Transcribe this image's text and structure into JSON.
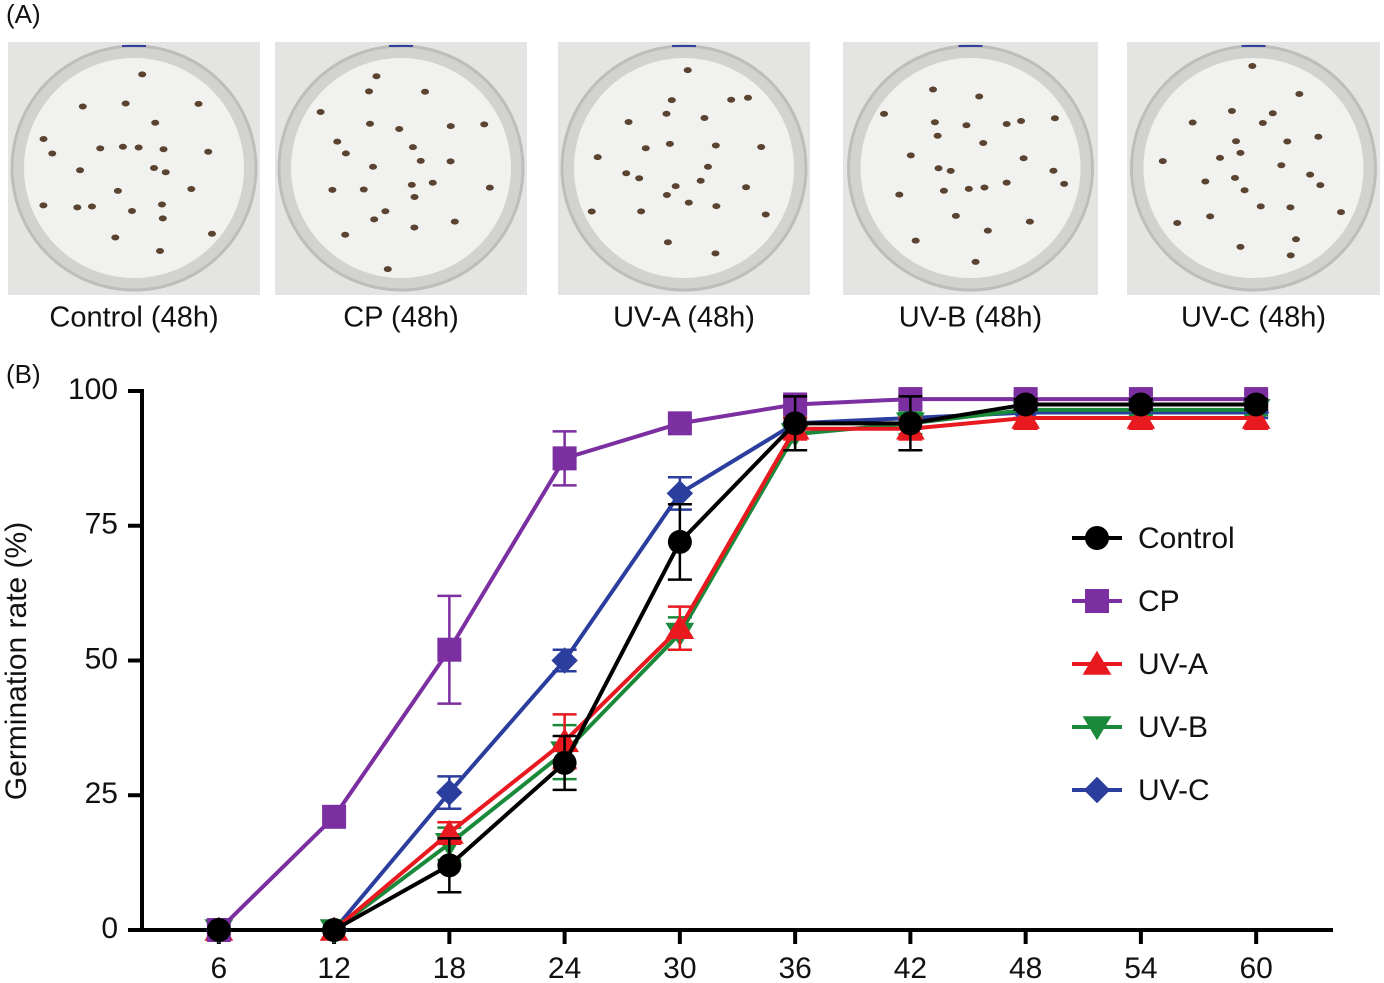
{
  "panel_a": {
    "label": "(A)",
    "captions": [
      "Control (48h)",
      "CP (48h)",
      "UV-A (48h)",
      "UV-B (48h)",
      "UV-C (48h)"
    ]
  },
  "panel_b": {
    "label": "(B)"
  },
  "chart_data": {
    "type": "line",
    "y_label": "Germination rate (%)",
    "x": [
      6,
      12,
      18,
      24,
      30,
      36,
      42,
      48,
      54,
      60
    ],
    "xlim": [
      2,
      64
    ],
    "xticks": [
      6,
      12,
      18,
      24,
      30,
      36,
      42,
      48,
      54,
      60
    ],
    "ylim": [
      0,
      100
    ],
    "yticks": [
      0,
      25,
      50,
      75,
      100
    ],
    "legend": "right",
    "series": [
      {
        "name": "Control",
        "color": "#000000",
        "marker": "circle",
        "values": [
          0,
          0,
          12,
          31,
          72,
          94,
          94,
          97.5,
          97.5,
          97.5
        ],
        "errors": [
          0,
          0,
          5,
          5,
          7,
          5,
          5,
          1,
          1,
          1
        ]
      },
      {
        "name": "CP",
        "color": "#7b2fa0",
        "marker": "square",
        "values": [
          0,
          21,
          52,
          87.5,
          94,
          97.5,
          98.5,
          98.5,
          98.5,
          98.5
        ],
        "errors": [
          0,
          0,
          10,
          5,
          1,
          1,
          1,
          1,
          1,
          1
        ]
      },
      {
        "name": "UV-A",
        "color": "#e8191f",
        "marker": "triangle-up",
        "values": [
          0,
          0,
          18,
          35,
          56,
          93,
          93,
          95,
          95,
          95
        ],
        "errors": [
          0,
          0,
          2,
          5,
          4,
          2,
          2,
          2,
          2,
          2
        ]
      },
      {
        "name": "UV-B",
        "color": "#1a8a3a",
        "marker": "triangle-down",
        "values": [
          0,
          0,
          16,
          33,
          55,
          92,
          94,
          96.5,
          96.5,
          96.5
        ],
        "errors": [
          0,
          0,
          3,
          5,
          3,
          3,
          2,
          3,
          1,
          1
        ]
      },
      {
        "name": "UV-C",
        "color": "#2b3e9e",
        "marker": "diamond",
        "values": [
          0,
          0,
          25.5,
          50,
          81,
          94,
          95,
          96,
          96,
          96
        ],
        "errors": [
          0,
          0,
          3,
          2,
          3,
          2,
          2,
          1,
          1,
          1
        ]
      }
    ]
  }
}
